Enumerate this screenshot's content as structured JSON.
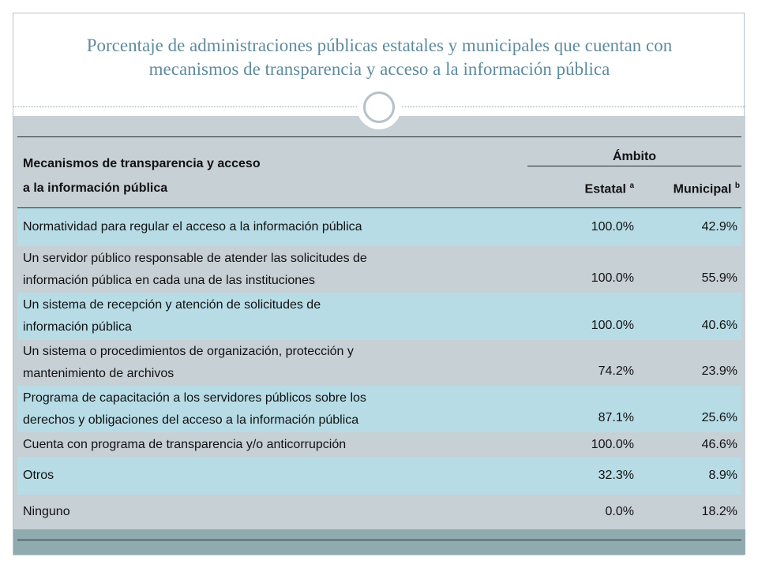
{
  "chart_data": {
    "type": "table",
    "title_line1": "Porcentaje de administraciones públicas estatales y municipales que cuentan con",
    "title_line2": "mecanismos de transparencia y acceso a la información pública",
    "header": {
      "label_line1": "Mecanismos de transparencia y acceso",
      "label_line2": "a la información pública",
      "group": "Ámbito",
      "col_estatal": "Estatal",
      "col_estatal_sup": "a",
      "col_municipal": "Municipal",
      "col_municipal_sup": "b"
    },
    "rows": [
      {
        "label_line1": "Normatividad para regular el acceso a la información pública",
        "label_line2": "",
        "estatal": "100.0%",
        "municipal": "42.9%"
      },
      {
        "label_line1": "Un servidor público responsable de atender las solicitudes de",
        "label_line2": "información pública en cada una de las instituciones",
        "estatal": "100.0%",
        "municipal": "55.9%"
      },
      {
        "label_line1": "Un sistema de recepción y atención de solicitudes de",
        "label_line2": "información pública",
        "estatal": "100.0%",
        "municipal": "40.6%"
      },
      {
        "label_line1": "Un sistema o procedimientos de organización, protección y",
        "label_line2": "mantenimiento de archivos",
        "estatal": "74.2%",
        "municipal": "23.9%"
      },
      {
        "label_line1": "Programa de capacitación a los servidores públicos sobre los",
        "label_line2": "derechos y obligaciones del acceso a la información pública",
        "estatal": "87.1%",
        "municipal": "25.6%"
      },
      {
        "label_line1": "Cuenta con programa de transparencia y/o anticorrupción",
        "label_line2": "",
        "estatal": "100.0%",
        "municipal": "46.6%"
      },
      {
        "label_line1": "Otros",
        "label_line2": "",
        "estatal": "32.3%",
        "municipal": "8.9%"
      },
      {
        "label_line1": "Ninguno",
        "label_line2": "",
        "estatal": "0.0%",
        "municipal": "18.2%"
      }
    ]
  },
  "colors": {
    "title": "#5f8b9e",
    "row_light": "#b7dce6",
    "row_gray": "#c7d0d5",
    "footer_bar": "#8fabb0"
  }
}
